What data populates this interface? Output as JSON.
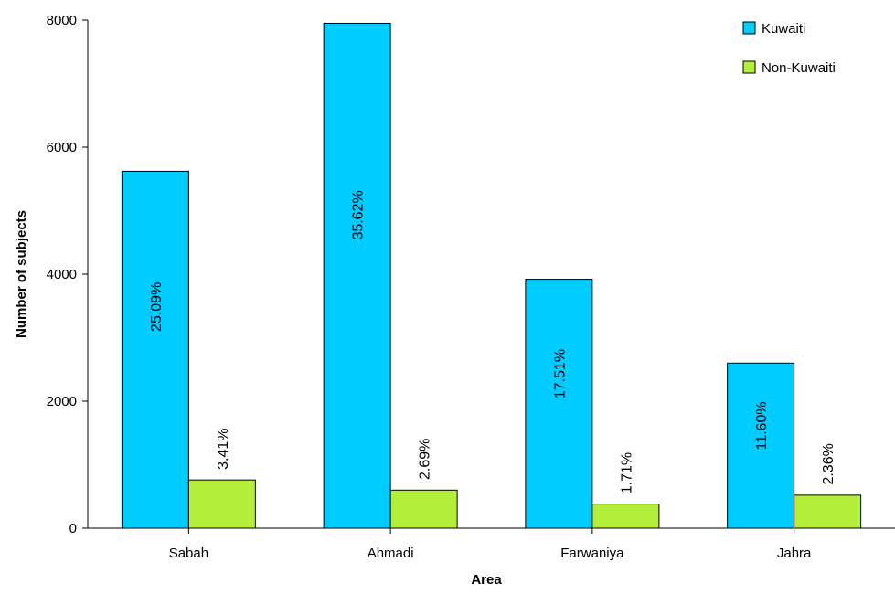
{
  "chart_data": {
    "type": "bar",
    "xlabel": "Area",
    "ylabel": "Number of subjects",
    "categories": [
      "Sabah",
      "Ahmadi",
      "Farwaniya",
      "Jahra"
    ],
    "ylim": [
      0,
      8000
    ],
    "yticks": [
      0,
      2000,
      4000,
      6000,
      8000
    ],
    "grid": false,
    "legend_position": "top-right",
    "series": [
      {
        "name": "Kuwaiti",
        "color": "#00ccff",
        "values": [
          5620,
          7950,
          3920,
          2600
        ],
        "labels": [
          "25.09%",
          "35.62%",
          "17.51%",
          "11.60%"
        ]
      },
      {
        "name": "Non-Kuwaiti",
        "color": "#b3ee3a",
        "values": [
          760,
          600,
          380,
          520
        ],
        "labels": [
          "3.41%",
          "2.69%",
          "1.71%",
          "2.36%"
        ]
      }
    ]
  }
}
